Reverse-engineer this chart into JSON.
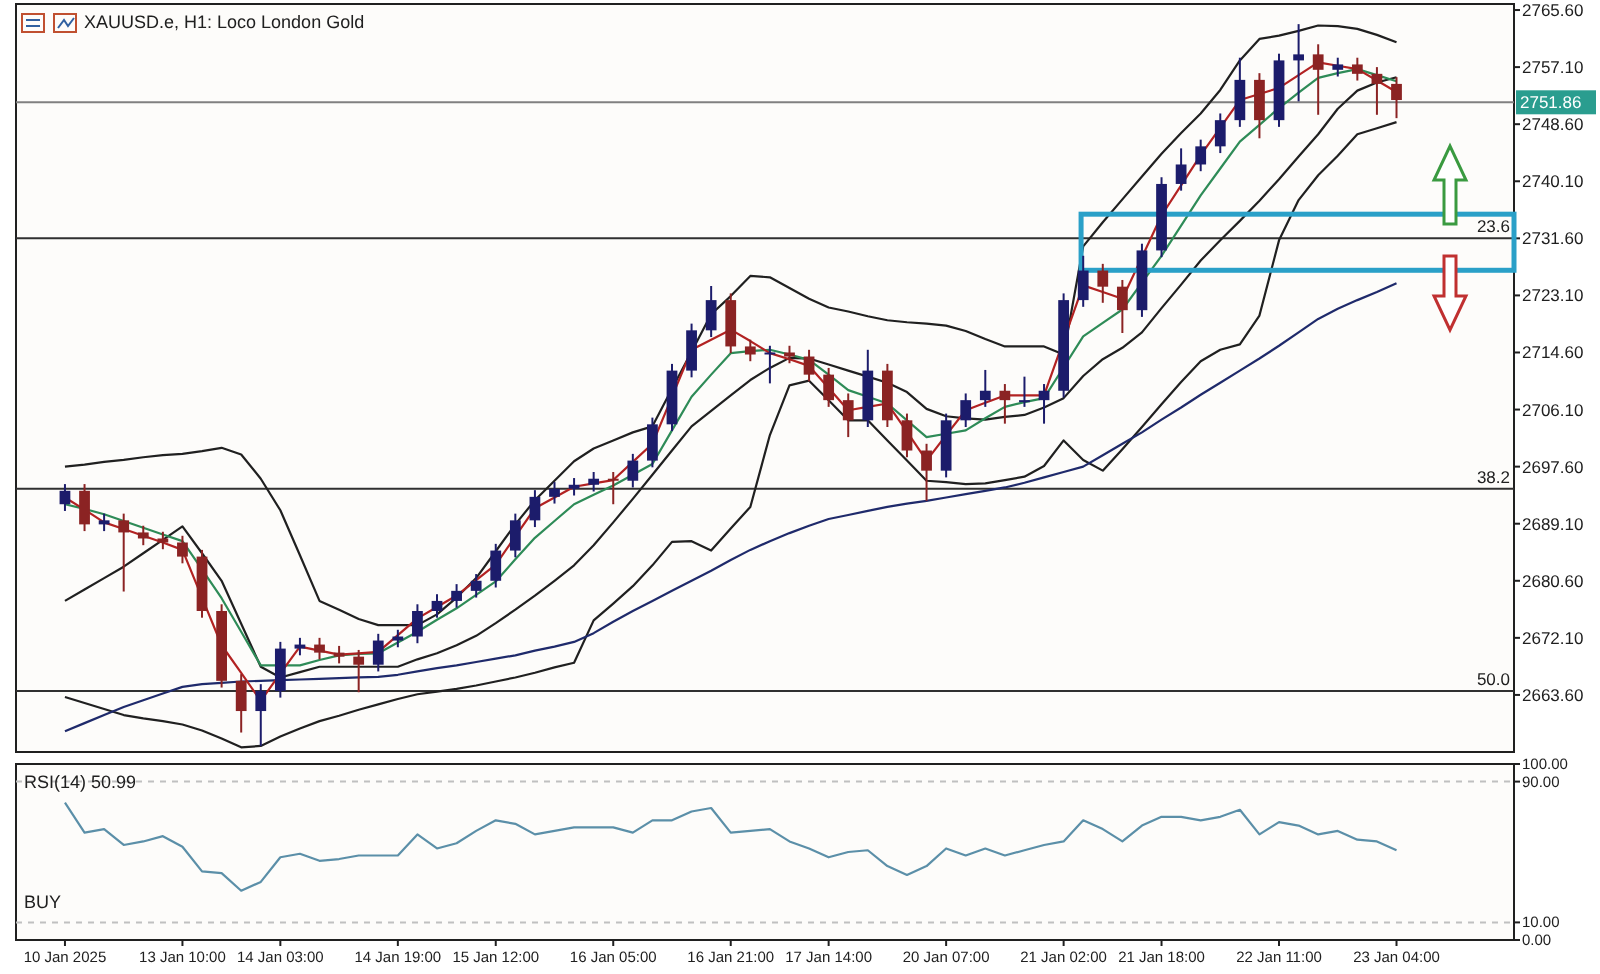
{
  "chart_data": [
    {
      "type": "candlestick",
      "title": "XAUUSD.e, H1:  Loco London Gold",
      "tick_labels": "y",
      "categories": [
        null,
        null,
        null,
        null,
        null,
        null,
        null,
        null,
        null,
        null,
        null,
        null,
        null,
        null,
        null,
        null,
        null,
        null,
        null,
        null,
        null,
        null,
        null,
        null,
        null,
        null,
        null,
        null,
        null,
        null,
        null,
        null,
        null,
        null,
        null,
        null,
        null,
        null,
        null,
        null,
        null,
        null,
        null,
        null,
        null,
        null,
        null,
        null,
        null,
        null,
        null,
        null,
        null,
        null,
        null,
        null,
        null,
        null,
        null,
        null,
        null,
        null,
        null,
        null,
        null,
        null,
        null,
        null,
        null
      ],
      "ylim": [
        2655.1,
        2766.5
      ],
      "yticks": [
        {
          "value": 2765.6,
          "label": "2765.60"
        },
        {
          "value": 2757.1,
          "label": "2757.10"
        },
        {
          "value": 2748.6,
          "label": "2748.60"
        },
        {
          "value": 2740.1,
          "label": "2740.10"
        },
        {
          "value": 2731.6,
          "label": "2731.60"
        },
        {
          "value": 2723.1,
          "label": "2723.10"
        },
        {
          "value": 2714.6,
          "label": "2714.60"
        },
        {
          "value": 2706.1,
          "label": "2706.10"
        },
        {
          "value": 2697.6,
          "label": "2697.60"
        },
        {
          "value": 2689.1,
          "label": "2689.10"
        },
        {
          "value": 2680.6,
          "label": "2680.60"
        },
        {
          "value": 2672.1,
          "label": "2672.10"
        },
        {
          "value": 2663.6,
          "label": "2663.60"
        }
      ],
      "ref_lines": [
        {
          "axis": "y",
          "value": 2751.86,
          "label": "2751.86",
          "color": "#808080"
        },
        {
          "axis": "y",
          "value": 2731.6,
          "color": "#303030"
        },
        {
          "axis": "y",
          "value": 2694.3,
          "color": "#303030"
        },
        {
          "axis": "y",
          "value": 2664.2,
          "color": "#303030"
        }
      ],
      "annotations": [
        {
          "text": "23.6",
          "y": 2731.6
        },
        {
          "text": "38.2",
          "y": 2694.3
        },
        {
          "text": "50.0",
          "y": 2664.2
        }
      ],
      "ohlc": [
        [
          2692.0,
          2695.0,
          2691.0,
          2694.0
        ],
        [
          2694.0,
          2695.0,
          2688.0,
          2689.0
        ],
        [
          2689.0,
          2690.6,
          2688.0,
          2689.6
        ],
        [
          2689.6,
          2690.6,
          2679.0,
          2687.8
        ],
        [
          2687.8,
          2688.8,
          2685.9,
          2686.9
        ],
        [
          2686.9,
          2687.9,
          2685.3,
          2686.3
        ],
        [
          2686.3,
          2687.3,
          2683.2,
          2684.2
        ],
        [
          2684.2,
          2685.2,
          2675.1,
          2676.1
        ],
        [
          2676.1,
          2677.1,
          2664.7,
          2665.7
        ],
        [
          2665.7,
          2666.7,
          2658.0,
          2661.2
        ],
        [
          2661.2,
          2665.2,
          2656.0,
          2664.2
        ],
        [
          2664.2,
          2671.5,
          2663.2,
          2670.5
        ],
        [
          2670.5,
          2672.1,
          2669.5,
          2671.1
        ],
        [
          2671.1,
          2672.1,
          2668.9,
          2669.9
        ],
        [
          2669.9,
          2670.9,
          2668.3,
          2669.3
        ],
        [
          2669.3,
          2670.3,
          2664.0,
          2668.1
        ],
        [
          2668.1,
          2672.7,
          2667.1,
          2671.7
        ],
        [
          2671.7,
          2673.3,
          2670.7,
          2672.3
        ],
        [
          2672.3,
          2677.1,
          2671.3,
          2676.1
        ],
        [
          2676.1,
          2678.6,
          2675.1,
          2677.6
        ],
        [
          2677.6,
          2680.1,
          2676.6,
          2679.1
        ],
        [
          2679.1,
          2681.6,
          2678.1,
          2680.6
        ],
        [
          2680.6,
          2686.1,
          2679.6,
          2685.1
        ],
        [
          2685.1,
          2690.6,
          2684.1,
          2689.6
        ],
        [
          2689.6,
          2694.1,
          2688.6,
          2693.1
        ],
        [
          2693.1,
          2695.3,
          2692.1,
          2694.3
        ],
        [
          2694.3,
          2695.9,
          2693.3,
          2694.9
        ],
        [
          2694.9,
          2696.8,
          2693.9,
          2695.8
        ],
        [
          2695.8,
          2696.8,
          2692.0,
          2695.5
        ],
        [
          2695.5,
          2699.5,
          2694.5,
          2698.5
        ],
        [
          2698.5,
          2704.9,
          2697.5,
          2703.9
        ],
        [
          2703.9,
          2712.9,
          2702.9,
          2711.9
        ],
        [
          2711.9,
          2718.9,
          2710.9,
          2717.9
        ],
        [
          2717.9,
          2724.5,
          2716.9,
          2722.4
        ],
        [
          2722.4,
          2723.4,
          2714.5,
          2715.5
        ],
        [
          2715.5,
          2716.5,
          2713.3,
          2714.3
        ],
        [
          2714.3,
          2715.6,
          2710.0,
          2714.6
        ],
        [
          2714.6,
          2715.6,
          2713.0,
          2714.0
        ],
        [
          2714.0,
          2715.0,
          2710.3,
          2711.3
        ],
        [
          2711.3,
          2712.3,
          2706.5,
          2707.5
        ],
        [
          2707.5,
          2708.5,
          2702.0,
          2704.5
        ],
        [
          2704.5,
          2715.0,
          2703.5,
          2711.9
        ],
        [
          2711.9,
          2712.9,
          2703.5,
          2704.5
        ],
        [
          2704.5,
          2705.5,
          2699.0,
          2700.0
        ],
        [
          2700.0,
          2701.0,
          2692.5,
          2697.0
        ],
        [
          2697.0,
          2705.5,
          2696.0,
          2704.5
        ],
        [
          2704.5,
          2708.5,
          2703.5,
          2707.5
        ],
        [
          2707.5,
          2712.0,
          2706.5,
          2708.9
        ],
        [
          2708.9,
          2709.9,
          2704.0,
          2707.5
        ],
        [
          2707.5,
          2711.0,
          2706.5,
          2707.5
        ],
        [
          2707.5,
          2709.9,
          2704.0,
          2708.9
        ],
        [
          2708.9,
          2723.4,
          2707.9,
          2722.4
        ],
        [
          2722.4,
          2729.0,
          2721.4,
          2726.8
        ],
        [
          2726.8,
          2727.8,
          2722.0,
          2724.4
        ],
        [
          2724.4,
          2725.4,
          2717.5,
          2720.9
        ],
        [
          2720.9,
          2730.8,
          2719.9,
          2729.8
        ],
        [
          2729.8,
          2740.7,
          2728.8,
          2739.7
        ],
        [
          2739.7,
          2745.0,
          2738.7,
          2742.6
        ],
        [
          2742.6,
          2746.3,
          2741.6,
          2745.3
        ],
        [
          2745.3,
          2750.2,
          2744.3,
          2749.2
        ],
        [
          2749.2,
          2758.5,
          2748.2,
          2755.2
        ],
        [
          2755.2,
          2756.2,
          2746.5,
          2749.2
        ],
        [
          2749.2,
          2759.1,
          2748.2,
          2758.1
        ],
        [
          2758.1,
          2763.5,
          2752.0,
          2759.0
        ],
        [
          2759.0,
          2760.5,
          2750.0,
          2756.7
        ],
        [
          2756.7,
          2758.5,
          2755.7,
          2757.5
        ],
        [
          2757.5,
          2758.5,
          2755.1,
          2756.1
        ],
        [
          2756.1,
          2757.1,
          2750.0,
          2754.6
        ],
        [
          2754.6,
          2755.6,
          2749.5,
          2752.2
        ]
      ],
      "series": [
        {
          "type": "line",
          "color": "#202020",
          "values": [
            2697.6,
            2697.9,
            2698.3,
            2698.6,
            2699,
            2699.3,
            2699.5,
            2699.9,
            2700.4,
            2699.4,
            2695.8,
            2691.1,
            2684.4,
            2677.6,
            2676.3,
            2674.9,
            2674,
            2674,
            2674,
            2675.6,
            2678.1,
            2681,
            2685,
            2689,
            2692.6,
            2695.5,
            2698.4,
            2700.3,
            2701.5,
            2702.7,
            2703.6,
            2709.2,
            2714.7,
            2720.3,
            2723,
            2726,
            2725.8,
            2724.2,
            2722.6,
            2721.3,
            2720.7,
            2720,
            2719.4,
            2719.1,
            2718.9,
            2718.6,
            2717.8,
            2716.6,
            2715.5,
            2715.5,
            2715.5,
            2714.3,
            2730.4,
            2734,
            2737.4,
            2740.8,
            2744.2,
            2747.3,
            2750.2,
            2753.7,
            2758.1,
            2761.3,
            2761.8,
            2762.5,
            2763.3,
            2763.2,
            2762.8,
            2761.9,
            2760.8
          ]
        },
        {
          "type": "line",
          "color": "#202020",
          "values": [
            2677.6,
            2679.3,
            2681,
            2682.7,
            2684.7,
            2686.7,
            2688.7,
            2684.7,
            2680.6,
            2674.2,
            2667.8,
            2666.2,
            2667,
            2667.8,
            2667.8,
            2667.8,
            2667.8,
            2667.8,
            2668.9,
            2669.8,
            2671,
            2672.4,
            2674.3,
            2676.3,
            2678.4,
            2680.6,
            2682.9,
            2685.9,
            2689.3,
            2692.8,
            2696.4,
            2700,
            2703.6,
            2705.9,
            2708.2,
            2710.5,
            2712.3,
            2713.8,
            2713.7,
            2712.8,
            2711.9,
            2711,
            2710.1,
            2708.7,
            2706.2,
            2705.1,
            2704.8,
            2704.6,
            2705,
            2705.3,
            2706.4,
            2707.8,
            2711.1,
            2713.6,
            2715.3,
            2717.6,
            2721.2,
            2724.7,
            2728.3,
            2731.3,
            2734.2,
            2737.2,
            2740.4,
            2743.8,
            2747.1,
            2750.9,
            2753.6,
            2754.8,
            2755.6
          ]
        },
        {
          "type": "line",
          "color": "#202020",
          "values": [
            2663.3,
            2662.4,
            2661.5,
            2660.6,
            2660.1,
            2659.7,
            2659.2,
            2658.3,
            2657.1,
            2655.8,
            2656,
            2657.4,
            2658.6,
            2659.7,
            2660.5,
            2661.4,
            2662.2,
            2663,
            2663.7,
            2664.1,
            2664.5,
            2665,
            2665.6,
            2666.2,
            2666.9,
            2667.7,
            2668.4,
            2674.7,
            2677.2,
            2679.8,
            2682.9,
            2686.4,
            2686.5,
            2685.1,
            2688.4,
            2691.6,
            2702.3,
            2709.7,
            2710.4,
            2707.5,
            2704.5,
            2704.5,
            2701.5,
            2698.5,
            2695.5,
            2695.3,
            2695,
            2695.1,
            2695.6,
            2696.1,
            2697.7,
            2701.5,
            2698.6,
            2697,
            2700.2,
            2703.5,
            2706.9,
            2710.2,
            2713.3,
            2715,
            2715.8,
            2720.1,
            2731.3,
            2737.3,
            2741,
            2743.9,
            2747.1,
            2748,
            2748.9
          ]
        },
        {
          "type": "line",
          "color": "#1f2a6b",
          "values": [
            2658.2,
            2659.4,
            2660.6,
            2661.8,
            2662.8,
            2663.8,
            2664.8,
            2665.2,
            2665.4,
            2665.6,
            2665.7,
            2665.8,
            2665.9,
            2666,
            2666.1,
            2666.2,
            2666.3,
            2666.6,
            2667.1,
            2667.6,
            2668,
            2668.5,
            2669,
            2669.5,
            2670.2,
            2670.8,
            2671.5,
            2672.8,
            2674.5,
            2676.1,
            2677.6,
            2679.1,
            2680.6,
            2682.1,
            2683.7,
            2685.2,
            2686.5,
            2687.7,
            2688.8,
            2689.8,
            2690.4,
            2691,
            2691.6,
            2692.1,
            2692.5,
            2693,
            2693.5,
            2694,
            2694.5,
            2695.2,
            2696,
            2696.8,
            2697.6,
            2699.3,
            2701,
            2702.7,
            2704.6,
            2706.4,
            2708.3,
            2710.1,
            2711.9,
            2713.7,
            2715.6,
            2717.6,
            2719.6,
            2721.1,
            2722.4,
            2723.6,
            2724.9
          ]
        },
        {
          "type": "line",
          "color": "#2e8b57",
          "values": [
            2692,
            2691.3,
            2690.5,
            2689.5,
            2688.5,
            2687.5,
            2686.5,
            2682.3,
            2678,
            2673,
            2668,
            2668,
            2668,
            2668.8,
            2669.5,
            2669.7,
            2669.8,
            2671.4,
            2673,
            2674.8,
            2676.5,
            2678.5,
            2680.5,
            2683.8,
            2687,
            2689.5,
            2692,
            2693.4,
            2694.8,
            2696.4,
            2698,
            2703,
            2708,
            2711.3,
            2714.5,
            2714.8,
            2715,
            2714.3,
            2713.5,
            2711.3,
            2709,
            2708,
            2707,
            2704.5,
            2702,
            2702.5,
            2703,
            2704.8,
            2706.5,
            2707.2,
            2707.8,
            2712.4,
            2717,
            2719,
            2721,
            2725,
            2729,
            2733.5,
            2738,
            2742,
            2746,
            2748.5,
            2751,
            2753.3,
            2755.5,
            2756.2,
            2756.8,
            2755.9,
            2755
          ]
        },
        {
          "type": "line",
          "color": "#b22222",
          "values": [
            2693,
            2691.2,
            2689.3,
            2688.3,
            2687.3,
            2686.3,
            2685.2,
            2678.1,
            2671,
            2666.9,
            2662.7,
            2666.8,
            2670.8,
            2670.2,
            2669.6,
            2669.8,
            2670,
            2672.5,
            2675,
            2676.7,
            2678.4,
            2680.7,
            2683,
            2687.2,
            2691.4,
            2693,
            2694.6,
            2695.1,
            2695.6,
            2698.3,
            2701,
            2708,
            2715,
            2716.5,
            2718,
            2716.3,
            2714.5,
            2713.6,
            2712.6,
            2709.3,
            2706,
            2706.5,
            2707,
            2702.8,
            2698.5,
            2702.3,
            2706,
            2707.1,
            2708.2,
            2708.2,
            2708.2,
            2716.4,
            2724.6,
            2723.6,
            2722.6,
            2728.8,
            2735,
            2739.5,
            2744,
            2748.1,
            2752.2,
            2753.1,
            2754,
            2755.9,
            2757.8,
            2757.3,
            2756.8,
            2755.1,
            2753.4
          ]
        }
      ]
    },
    {
      "type": "line",
      "title": "RSI(14) 50.99",
      "annotations": [
        "BUY"
      ],
      "categories": [
        "10 Jan 2025",
        null,
        null,
        null,
        null,
        null,
        "13 Jan 10:00",
        null,
        null,
        null,
        null,
        "14 Jan 03:00",
        null,
        null,
        null,
        null,
        null,
        "14 Jan 19:00",
        null,
        null,
        null,
        null,
        "15 Jan 12:00",
        null,
        null,
        null,
        null,
        null,
        "16 Jan 05:00",
        null,
        null,
        null,
        null,
        null,
        "16 Jan 21:00",
        null,
        null,
        null,
        null,
        "17 Jan 14:00",
        null,
        null,
        null,
        null,
        null,
        "20 Jan 07:00",
        null,
        null,
        null,
        null,
        null,
        "21 Jan 02:00",
        null,
        null,
        null,
        null,
        "21 Jan 18:00",
        null,
        null,
        null,
        null,
        null,
        "22 Jan 11:00",
        null,
        null,
        null,
        null,
        null,
        "23 Jan 04:00"
      ],
      "ylim": [
        0,
        100
      ],
      "yticks": [
        {
          "value": 100,
          "label": "100.00"
        },
        {
          "value": 90,
          "label": "90.00"
        },
        {
          "value": 10,
          "label": "10.00"
        },
        {
          "value": 0,
          "label": "0.00"
        }
      ],
      "ref_lines": [
        {
          "axis": "y",
          "value": 90,
          "color": "#c0c0c0",
          "line_style": "dashed"
        },
        {
          "axis": "y",
          "value": 10,
          "color": "#c0c0c0",
          "line_style": "dashed"
        }
      ],
      "series": [
        {
          "color": "#5b8fa8",
          "values": [
            78,
            61,
            63,
            54,
            56,
            59,
            53,
            39,
            38,
            28,
            33,
            47,
            49,
            45,
            46,
            48,
            48,
            48,
            60,
            52,
            55,
            62,
            68,
            66,
            60,
            62,
            64,
            64,
            64,
            61,
            68,
            68,
            73,
            75,
            61,
            62,
            63,
            56,
            52,
            47,
            50,
            51,
            42,
            37,
            42,
            52,
            48,
            52,
            48,
            51,
            54,
            56,
            68,
            63,
            56,
            65,
            70,
            70,
            68,
            70,
            74,
            60,
            67,
            65,
            60,
            62,
            57,
            56,
            51
          ]
        }
      ]
    }
  ]
}
